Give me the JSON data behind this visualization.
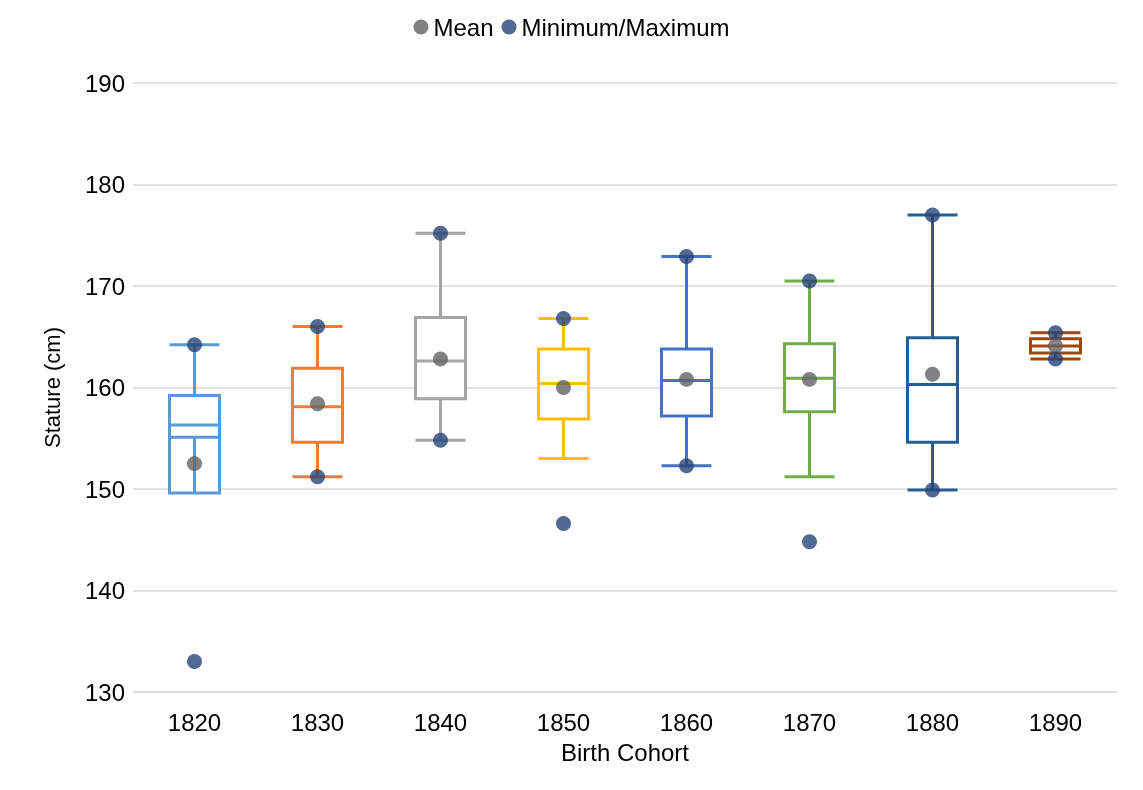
{
  "chart_data": {
    "type": "box",
    "xlabel": "Birth Cohort",
    "ylabel": "Stature (cm)",
    "categories": [
      "1820",
      "1830",
      "1840",
      "1850",
      "1860",
      "1870",
      "1880",
      "1890"
    ],
    "colors": [
      "#5b9bd5",
      "#ed7d31",
      "#a5a5a5",
      "#ffc000",
      "#4472c4",
      "#70ad47",
      "#255e91",
      "#9e480e"
    ],
    "boxes": [
      {
        "low": 155.1,
        "q1": 149.6,
        "median": 156.3,
        "q3": 159.2,
        "high": 164.2
      },
      {
        "low": 151.2,
        "q1": 154.6,
        "median": 158.1,
        "q3": 161.9,
        "high": 166.0
      },
      {
        "low": 154.8,
        "q1": 158.9,
        "median": 162.6,
        "q3": 166.9,
        "high": 175.2
      },
      {
        "low": 153.0,
        "q1": 156.9,
        "median": 160.4,
        "q3": 163.8,
        "high": 166.8
      },
      {
        "low": 152.3,
        "q1": 157.2,
        "median": 160.7,
        "q3": 163.8,
        "high": 172.9
      },
      {
        "low": 151.2,
        "q1": 157.6,
        "median": 160.9,
        "q3": 164.3,
        "high": 170.5
      },
      {
        "low": 149.9,
        "q1": 154.6,
        "median": 160.3,
        "q3": 164.9,
        "high": 177.0
      },
      {
        "low": 162.8,
        "q1": 163.4,
        "median": 164.1,
        "q3": 164.8,
        "high": 165.4
      }
    ],
    "series": [
      {
        "name": "Mean",
        "type": "scatter",
        "color": "#636363",
        "values": [
          152.5,
          158.4,
          162.8,
          160.0,
          160.8,
          160.8,
          161.3,
          164.1
        ]
      },
      {
        "name": "Minimum/Maximum",
        "type": "scatter",
        "color": "#264478",
        "values": [
          133.0,
          151.2,
          154.8,
          146.6,
          152.3,
          144.8,
          149.9,
          162.8
        ]
      },
      {
        "type": "scatter",
        "color": "#264478",
        "values": [
          164.2,
          166.0,
          175.2,
          166.8,
          172.9,
          170.5,
          177.0,
          165.4
        ]
      }
    ],
    "ylim": [
      130,
      190
    ],
    "yticks": [
      130,
      140,
      150,
      160,
      170,
      180,
      190
    ],
    "grid": "y",
    "legend": "top",
    "marker": "circle"
  }
}
